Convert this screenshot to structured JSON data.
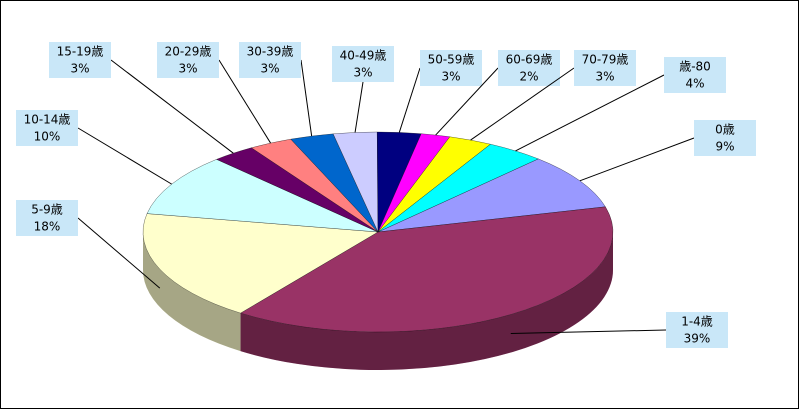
{
  "chart_data": {
    "type": "pie3d",
    "categories": [
      "0歳",
      "1-4歳",
      "5-9歳",
      "10-14歳",
      "15-19歳",
      "20-29歳",
      "30-39歳",
      "40-49歳",
      "50-59歳",
      "60-69歳",
      "70-79歳",
      "歳-80"
    ],
    "values": [
      9,
      39,
      18,
      10,
      3,
      3,
      3,
      3,
      3,
      2,
      3,
      4
    ],
    "value_labels": [
      "9%",
      "39%",
      "18%",
      "10%",
      "3%",
      "3%",
      "3%",
      "3%",
      "3%",
      "2%",
      "3%",
      "4%"
    ],
    "colors": [
      "#9999ff",
      "#993366",
      "#ffffcc",
      "#ccffff",
      "#660066",
      "#ff8080",
      "#0066cc",
      "#ccccff",
      "#000080",
      "#ff00ff",
      "#ffff00",
      "#00ffff"
    ]
  }
}
